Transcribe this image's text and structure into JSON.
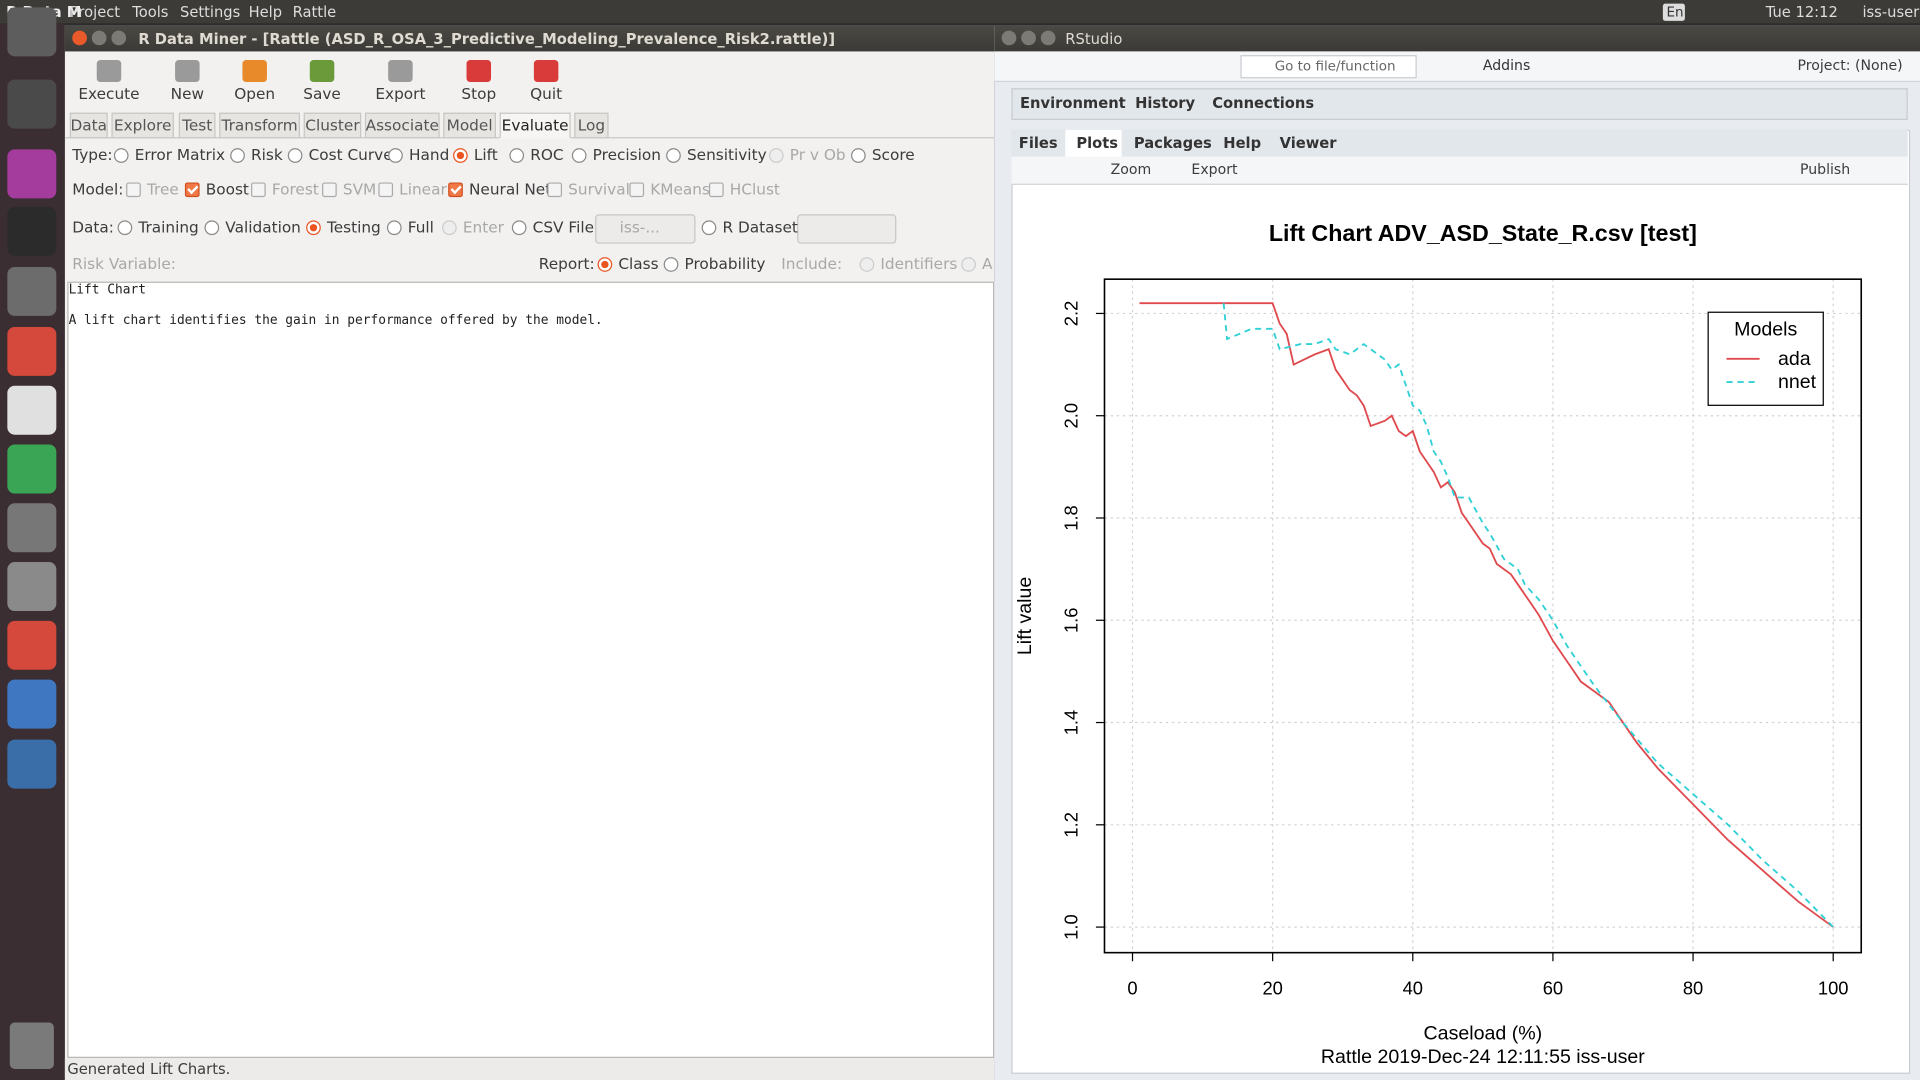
{
  "topbar": {
    "app": "R Data M",
    "menus": [
      "Project",
      "Tools",
      "Settings",
      "Help",
      "Rattle"
    ],
    "lang": "En",
    "clock": "Tue 12:12",
    "user": "iss-user"
  },
  "rattle": {
    "title": "R Data Miner - [Rattle (ASD_R_OSA_3_Predictive_Modeling_Prevalence_Risk2.rattle)]",
    "toolbar": [
      "Execute",
      "New",
      "Open",
      "Save",
      "Export",
      "Stop",
      "Quit"
    ],
    "tabs": [
      "Data",
      "Explore",
      "Test",
      "Transform",
      "Cluster",
      "Associate",
      "Model",
      "Evaluate",
      "Log"
    ],
    "type_label": "Type:",
    "types": [
      "Error Matrix",
      "Risk",
      "Cost Curve",
      "Hand",
      "Lift",
      "ROC",
      "Precision",
      "Sensitivity",
      "Pr v Ob",
      "Score"
    ],
    "model_label": "Model:",
    "models": [
      "Tree",
      "Boost",
      "Forest",
      "SVM",
      "Linear",
      "Neural Net",
      "Survival",
      "KMeans",
      "HClust"
    ],
    "data_label": "Data:",
    "data_options": [
      "Training",
      "Validation",
      "Testing",
      "Full",
      "Enter",
      "CSV File"
    ],
    "csv_file": "iss-...",
    "r_dataset": "R Dataset",
    "risk_label": "Risk Variable:",
    "report_label": "Report:",
    "report_options": [
      "Class",
      "Probability"
    ],
    "include_label": "Include:",
    "include_options": [
      "Identifiers",
      "A"
    ],
    "output": [
      "Lift Chart",
      "A lift chart identifies the gain in performance offered by the model."
    ],
    "status": "Generated Lift Charts."
  },
  "rstudio": {
    "title": "RStudio",
    "goto": "Go to file/function",
    "addins": "Addins",
    "project": "Project: (None)",
    "upper_tabs": [
      "Environment",
      "History",
      "Connections"
    ],
    "lower_tabs": [
      "Files",
      "Plots",
      "Packages",
      "Help",
      "Viewer"
    ],
    "plot_tools": [
      "Zoom",
      "Export",
      "Publish"
    ]
  },
  "chart_data": {
    "type": "line",
    "title": "Lift Chart  ADV_ASD_State_R.csv [test]",
    "xlabel": "Caseload (%)",
    "ylabel": "Lift value",
    "subtitle": "Rattle 2019-Dec-24 12:11:55 iss-user",
    "legend_title": "Models",
    "legend": "topright",
    "grid": true,
    "xlim": [
      -4,
      104
    ],
    "xticks": [
      0,
      20,
      40,
      60,
      80,
      100
    ],
    "ylim": [
      0.95,
      2.267
    ],
    "yticks": [
      {
        "value": 1.0,
        "label": "1.0"
      },
      1.2,
      1.4,
      1.6,
      1.8,
      {
        "value": 2.0,
        "label": "2.0"
      },
      2.2
    ],
    "series": [
      {
        "name": "ada",
        "color": "#df4a4f",
        "linestyle": "solid",
        "x": [
          1,
          20,
          21,
          22,
          23,
          26,
          28,
          29,
          30,
          31,
          32,
          33,
          34,
          36,
          37,
          38,
          39,
          40,
          41,
          42,
          43,
          44,
          45,
          46,
          47,
          48,
          50,
          51,
          52,
          54,
          55,
          57,
          58,
          60,
          62,
          64,
          66,
          68,
          70,
          72,
          75,
          80,
          85,
          90,
          95,
          100
        ],
        "values": [
          2.22,
          2.22,
          2.18,
          2.16,
          2.1,
          2.12,
          2.13,
          2.09,
          2.07,
          2.05,
          2.04,
          2.02,
          1.98,
          1.99,
          2.0,
          1.97,
          1.96,
          1.97,
          1.93,
          1.91,
          1.89,
          1.86,
          1.87,
          1.85,
          1.81,
          1.79,
          1.75,
          1.74,
          1.71,
          1.69,
          1.67,
          1.63,
          1.61,
          1.56,
          1.52,
          1.48,
          1.46,
          1.44,
          1.4,
          1.36,
          1.31,
          1.24,
          1.17,
          1.11,
          1.05,
          1.0
        ]
      },
      {
        "name": "nnet",
        "color": "#2fd0d6",
        "linestyle": "dashed",
        "x": [
          13,
          13.5,
          17,
          20,
          21,
          24,
          26,
          28,
          29,
          31,
          33,
          35,
          36,
          37,
          38,
          40,
          41,
          42,
          43,
          44,
          45,
          46,
          48,
          50,
          51,
          53,
          55,
          56,
          58,
          60,
          62,
          64,
          66,
          70,
          75,
          80,
          85,
          90,
          95,
          100
        ],
        "values": [
          2.22,
          2.15,
          2.17,
          2.17,
          2.13,
          2.14,
          2.14,
          2.15,
          2.13,
          2.12,
          2.14,
          2.12,
          2.11,
          2.09,
          2.1,
          2.02,
          2.01,
          1.98,
          1.93,
          1.91,
          1.88,
          1.84,
          1.84,
          1.79,
          1.77,
          1.72,
          1.7,
          1.67,
          1.64,
          1.6,
          1.55,
          1.51,
          1.47,
          1.4,
          1.32,
          1.26,
          1.2,
          1.13,
          1.07,
          1.0
        ]
      }
    ]
  }
}
